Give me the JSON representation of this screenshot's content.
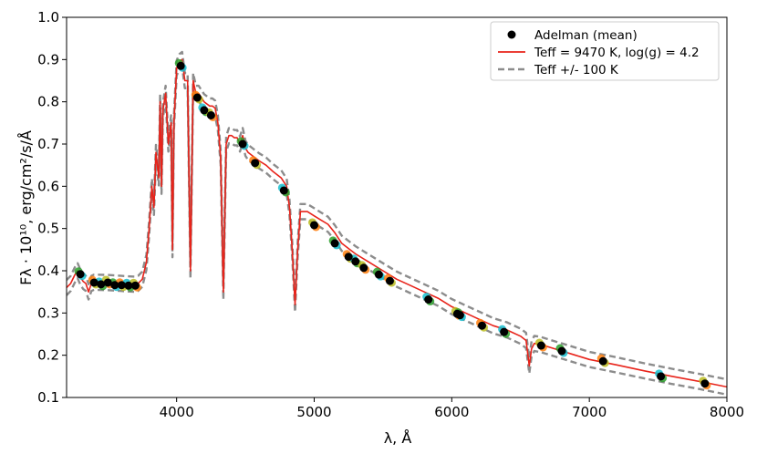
{
  "chart_data": {
    "type": "line",
    "title": "",
    "xlabel": "λ, Å",
    "ylabel": "Fλ · 10¹⁰, erg/cm²/s/Å",
    "xlim": [
      3200,
      8000
    ],
    "ylim": [
      0.1,
      1.0
    ],
    "x_ticks": [
      4000,
      5000,
      6000,
      7000,
      8000
    ],
    "x_tick_labels": [
      "4000",
      "5000",
      "6000",
      "7000",
      "8000"
    ],
    "y_ticks": [
      0.1,
      0.2,
      0.3,
      0.4,
      0.5,
      0.6,
      0.7,
      0.8,
      0.9,
      1.0
    ],
    "y_tick_labels": [
      "0.1",
      "0.2",
      "0.3",
      "0.4",
      "0.5",
      "0.6",
      "0.7",
      "0.8",
      "0.9",
      "1.0"
    ],
    "legend_position": "top-right",
    "colors": {
      "observed": "#000000",
      "model": "#e8231a",
      "bounds": "#8c8c8c",
      "scatter_colors": [
        "#2ca02c",
        "#ff7f0e",
        "#17becf",
        "#bcbd22"
      ]
    },
    "series": [
      {
        "name": "Adelman (mean)",
        "style": "points",
        "x": [
          3300,
          3400,
          3450,
          3500,
          3550,
          3600,
          3650,
          3700,
          4030,
          4150,
          4200,
          4250,
          4480,
          4570,
          4780,
          5000,
          5150,
          5250,
          5300,
          5360,
          5470,
          5550,
          5830,
          6040,
          6060,
          6220,
          6380,
          6650,
          6800,
          7100,
          7520,
          7840
        ],
        "y": [
          0.392,
          0.372,
          0.368,
          0.372,
          0.366,
          0.366,
          0.365,
          0.365,
          0.885,
          0.81,
          0.78,
          0.768,
          0.7,
          0.655,
          0.59,
          0.508,
          0.465,
          0.433,
          0.422,
          0.407,
          0.391,
          0.376,
          0.332,
          0.298,
          0.295,
          0.27,
          0.255,
          0.223,
          0.21,
          0.186,
          0.15,
          0.133
        ]
      },
      {
        "name": "Teff = 9470 K, log(g) = 4.2",
        "style": "solid",
        "x": [
          3200,
          3230,
          3260,
          3280,
          3300,
          3320,
          3340,
          3360,
          3380,
          3400,
          3500,
          3600,
          3700,
          3720,
          3750,
          3780,
          3800,
          3820,
          3835,
          3850,
          3870,
          3880,
          3890,
          3900,
          3920,
          3940,
          3960,
          3970,
          3980,
          4000,
          4020,
          4040,
          4060,
          4080,
          4100,
          4120,
          4140,
          4160,
          4180,
          4200,
          4220,
          4240,
          4260,
          4280,
          4300,
          4320,
          4340,
          4360,
          4380,
          4400,
          4420,
          4440,
          4460,
          4480,
          4500,
          4520,
          4560,
          4600,
          4650,
          4700,
          4760,
          4800,
          4820,
          4840,
          4861,
          4880,
          4900,
          4950,
          5000,
          5050,
          5100,
          5150,
          5200,
          5300,
          5400,
          5500,
          5600,
          5700,
          5800,
          5900,
          6000,
          6100,
          6200,
          6300,
          6400,
          6500,
          6540,
          6563,
          6580,
          6600,
          6650,
          6700,
          6800,
          6900,
          7000,
          7200,
          7400,
          7600,
          7800,
          8000
        ],
        "y": [
          0.36,
          0.37,
          0.39,
          0.4,
          0.385,
          0.375,
          0.37,
          0.35,
          0.37,
          0.373,
          0.372,
          0.37,
          0.368,
          0.37,
          0.38,
          0.42,
          0.5,
          0.6,
          0.55,
          0.68,
          0.62,
          0.8,
          0.6,
          0.78,
          0.82,
          0.7,
          0.75,
          0.45,
          0.75,
          0.88,
          0.895,
          0.9,
          0.85,
          0.85,
          0.4,
          0.85,
          0.82,
          0.82,
          0.81,
          0.8,
          0.795,
          0.79,
          0.79,
          0.785,
          0.75,
          0.67,
          0.35,
          0.7,
          0.72,
          0.72,
          0.715,
          0.715,
          0.7,
          0.72,
          0.69,
          0.68,
          0.67,
          0.66,
          0.65,
          0.635,
          0.62,
          0.6,
          0.55,
          0.45,
          0.32,
          0.45,
          0.54,
          0.54,
          0.53,
          0.52,
          0.51,
          0.49,
          0.465,
          0.44,
          0.42,
          0.4,
          0.38,
          0.365,
          0.35,
          0.335,
          0.315,
          0.3,
          0.285,
          0.27,
          0.26,
          0.245,
          0.235,
          0.175,
          0.215,
          0.228,
          0.225,
          0.22,
          0.21,
          0.2,
          0.19,
          0.177,
          0.163,
          0.15,
          0.138,
          0.125
        ]
      },
      {
        "name": "Teff +/- 100 K",
        "style": "dashed",
        "delta": 0.018
      }
    ]
  },
  "legend": {
    "observed_label": "Adelman (mean)",
    "model_label": "Teff = 9470 K, log(g) = 4.2",
    "bounds_label": "Teff +/- 100 K"
  },
  "axes": {
    "xlabel_text": "λ, Å",
    "ylabel_text": "Fλ · 10¹⁰, erg/cm²/s/Å"
  }
}
